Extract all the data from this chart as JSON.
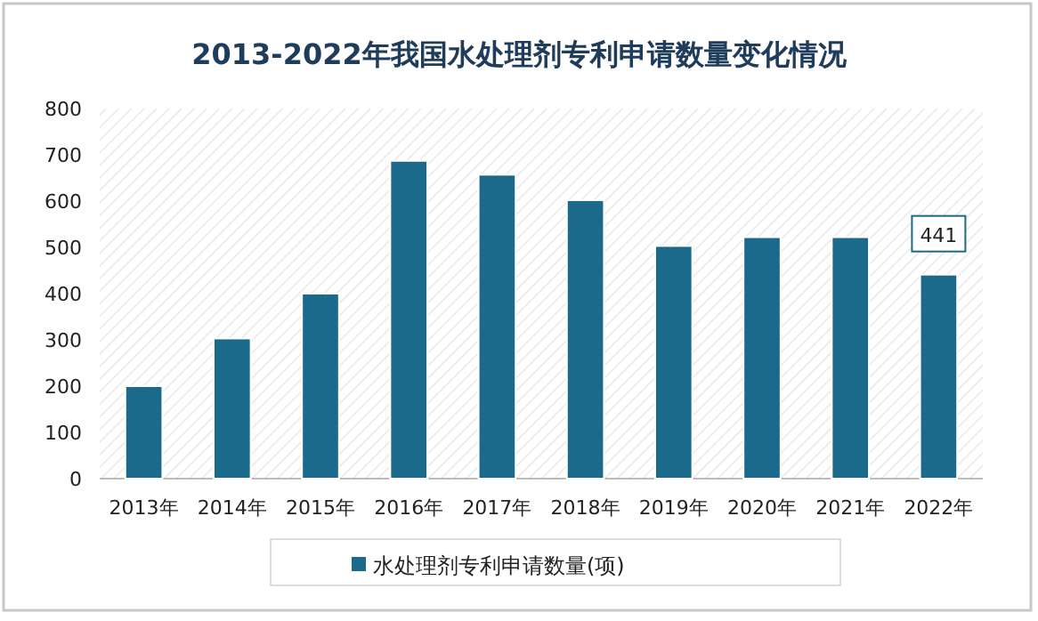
{
  "chart_data": {
    "type": "bar",
    "title": "2013-2022年我国水处理剂专利申请数量变化情况",
    "categories": [
      "2013年",
      "2014年",
      "2015年",
      "2016年",
      "2017年",
      "2018年",
      "2019年",
      "2020年",
      "2021年",
      "2022年"
    ],
    "series": [
      {
        "name": "水处理剂专利申请数量(项)",
        "color": "#1b6a8c",
        "values": [
          200,
          303,
          400,
          687,
          657,
          602,
          503,
          522,
          522,
          441
        ],
        "value_labels": [
          null,
          null,
          null,
          null,
          null,
          null,
          null,
          null,
          null,
          "441"
        ]
      }
    ],
    "ylim": [
      0,
      800
    ],
    "yticks": [
      0,
      100,
      200,
      300,
      400,
      500,
      600,
      700,
      800
    ],
    "legend": "bottom"
  }
}
